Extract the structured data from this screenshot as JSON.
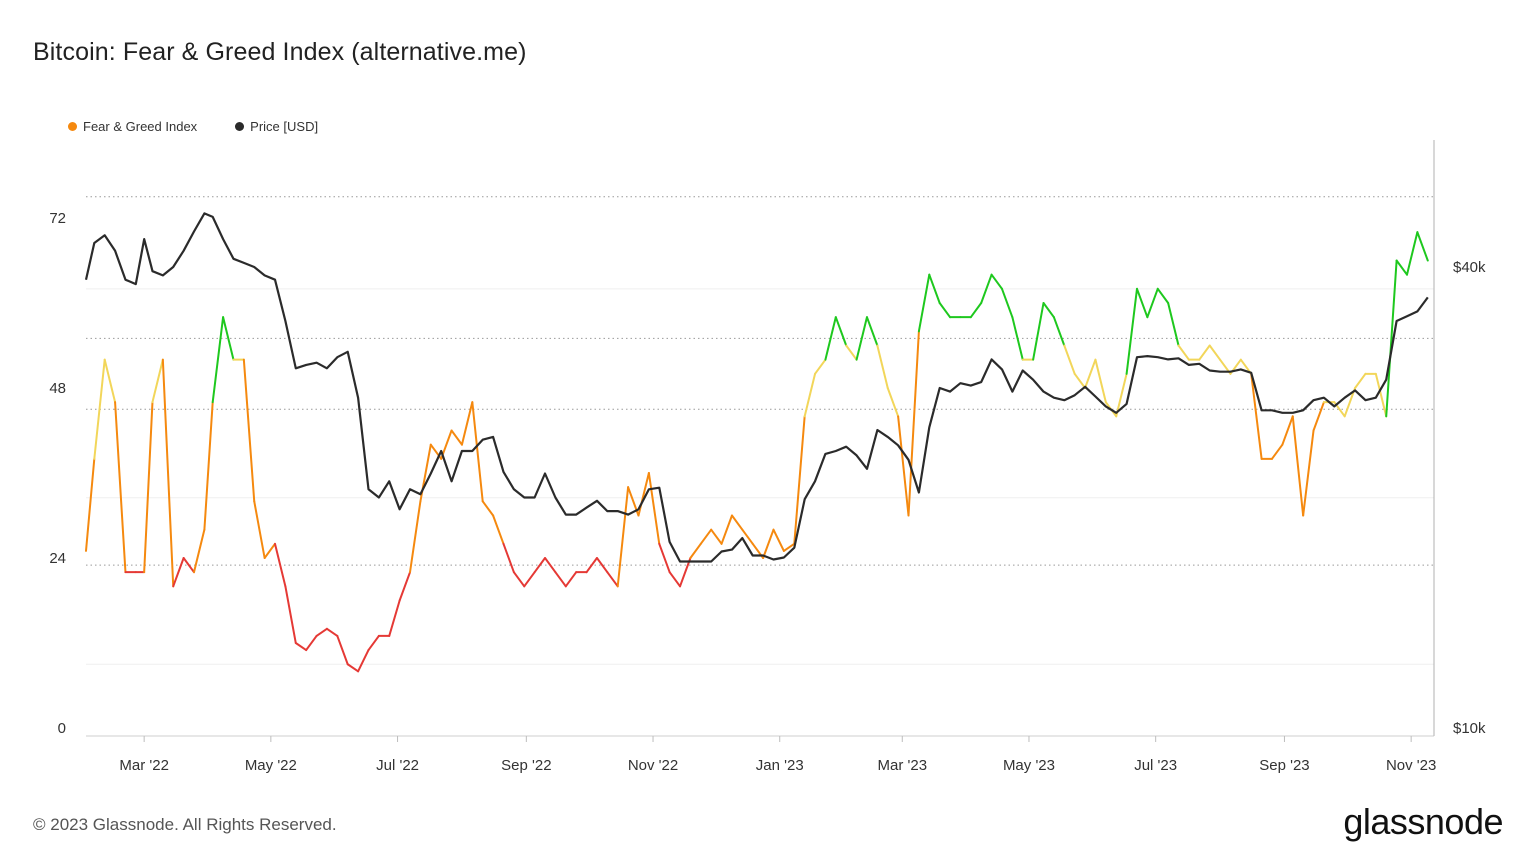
{
  "header": {
    "title": "Bitcoin: Fear & Greed Index (alternative.me)"
  },
  "footer": {
    "copyright": "© 2023 Glassnode. All Rights Reserved.",
    "brand": "glassnode"
  },
  "colors": {
    "extreme_fear": "#e53935",
    "fear": "#f5890f",
    "neutral": "#f2d65a",
    "greed": "#1ec81e",
    "price": "#2b2b2b",
    "grid": "#9a9a9a"
  },
  "chart_data": {
    "type": "line",
    "title": "Bitcoin: Fear & Greed Index (alternative.me)",
    "legend": {
      "placement": "top-left",
      "items": [
        {
          "name": "Fear & Greed Index",
          "color": "#f5890f"
        },
        {
          "name": "Price [USD]",
          "color": "#2b2b2b"
        }
      ]
    },
    "x_ticks": [
      "Mar '22",
      "May '22",
      "Jul '22",
      "Sep '22",
      "Nov '22",
      "Jan '23",
      "Mar '23",
      "May '23",
      "Jul '23",
      "Sep '23",
      "Nov '23"
    ],
    "y_left": {
      "label": "",
      "ticks": [
        "0",
        "24",
        "48",
        "72"
      ],
      "range": [
        0,
        75
      ]
    },
    "y_right": {
      "label": "",
      "ticks": [
        "$10k",
        "$40k"
      ],
      "scale": "log",
      "range": [
        10000,
        50000
      ]
    },
    "grid": {
      "horizontal": "dotted"
    },
    "series": [
      {
        "name": "Fear & Greed Index",
        "axis": "left",
        "color_bands": [
          {
            "max": 25,
            "color": "#e53935"
          },
          {
            "max": 45,
            "color": "#f5890f"
          },
          {
            "max": 55,
            "color": "#f2d65a"
          },
          {
            "max": 100,
            "color": "#1ec81e"
          }
        ],
        "x": [
          "2022-02-01",
          "2022-02-05",
          "2022-02-10",
          "2022-02-15",
          "2022-02-20",
          "2022-02-25",
          "2022-03-01",
          "2022-03-05",
          "2022-03-10",
          "2022-03-15",
          "2022-03-20",
          "2022-03-25",
          "2022-03-30",
          "2022-04-03",
          "2022-04-08",
          "2022-04-13",
          "2022-04-18",
          "2022-04-23",
          "2022-04-28",
          "2022-05-03",
          "2022-05-08",
          "2022-05-13",
          "2022-05-18",
          "2022-05-23",
          "2022-05-28",
          "2022-06-02",
          "2022-06-07",
          "2022-06-12",
          "2022-06-17",
          "2022-06-22",
          "2022-06-27",
          "2022-07-02",
          "2022-07-07",
          "2022-07-12",
          "2022-07-17",
          "2022-07-22",
          "2022-07-27",
          "2022-08-01",
          "2022-08-06",
          "2022-08-11",
          "2022-08-16",
          "2022-08-21",
          "2022-08-26",
          "2022-08-31",
          "2022-09-05",
          "2022-09-10",
          "2022-09-15",
          "2022-09-20",
          "2022-09-25",
          "2022-09-30",
          "2022-10-05",
          "2022-10-10",
          "2022-10-15",
          "2022-10-20",
          "2022-10-25",
          "2022-10-30",
          "2022-11-04",
          "2022-11-09",
          "2022-11-14",
          "2022-11-19",
          "2022-11-24",
          "2022-11-29",
          "2022-12-04",
          "2022-12-09",
          "2022-12-14",
          "2022-12-19",
          "2022-12-24",
          "2022-12-29",
          "2023-01-03",
          "2023-01-08",
          "2023-01-13",
          "2023-01-18",
          "2023-01-23",
          "2023-01-28",
          "2023-02-02",
          "2023-02-07",
          "2023-02-12",
          "2023-02-17",
          "2023-02-22",
          "2023-02-27",
          "2023-03-04",
          "2023-03-09",
          "2023-03-14",
          "2023-03-19",
          "2023-03-24",
          "2023-03-29",
          "2023-04-03",
          "2023-04-08",
          "2023-04-13",
          "2023-04-18",
          "2023-04-23",
          "2023-04-28",
          "2023-05-03",
          "2023-05-08",
          "2023-05-13",
          "2023-05-18",
          "2023-05-23",
          "2023-05-28",
          "2023-06-02",
          "2023-06-07",
          "2023-06-12",
          "2023-06-17",
          "2023-06-22",
          "2023-06-27",
          "2023-07-02",
          "2023-07-07",
          "2023-07-12",
          "2023-07-17",
          "2023-07-22",
          "2023-07-27",
          "2023-08-01",
          "2023-08-06",
          "2023-08-11",
          "2023-08-16",
          "2023-08-21",
          "2023-08-26",
          "2023-08-31",
          "2023-09-05",
          "2023-09-10",
          "2023-09-15",
          "2023-09-20",
          "2023-09-25",
          "2023-09-30",
          "2023-10-05",
          "2023-10-10",
          "2023-10-15",
          "2023-10-20",
          "2023-10-25",
          "2023-10-30",
          "2023-11-04",
          "2023-11-09"
        ],
        "values": [
          25,
          38,
          52,
          46,
          22,
          22,
          22,
          46,
          52,
          20,
          24,
          22,
          28,
          46,
          58,
          52,
          52,
          32,
          24,
          26,
          20,
          12,
          11,
          13,
          14,
          13,
          9,
          8,
          11,
          13,
          13,
          18,
          22,
          32,
          40,
          38,
          42,
          40,
          46,
          32,
          30,
          26,
          22,
          20,
          22,
          24,
          22,
          20,
          22,
          22,
          24,
          22,
          20,
          34,
          30,
          36,
          26,
          22,
          20,
          24,
          26,
          28,
          26,
          30,
          28,
          26,
          24,
          28,
          25,
          26,
          44,
          50,
          52,
          58,
          54,
          52,
          58,
          54,
          48,
          44,
          30,
          56,
          64,
          60,
          58,
          58,
          58,
          60,
          64,
          62,
          58,
          52,
          52,
          60,
          58,
          54,
          50,
          48,
          52,
          46,
          44,
          50,
          62,
          58,
          62,
          60,
          54,
          52,
          52,
          54,
          52,
          50,
          52,
          50,
          38,
          38,
          40,
          44,
          30,
          42,
          46,
          46,
          44,
          48,
          50,
          50,
          44,
          66,
          64,
          70,
          66
        ]
      },
      {
        "name": "Price [USD]",
        "axis": "right",
        "x": [
          "2022-02-01",
          "2022-02-05",
          "2022-02-10",
          "2022-02-15",
          "2022-02-20",
          "2022-02-25",
          "2022-03-01",
          "2022-03-05",
          "2022-03-10",
          "2022-03-15",
          "2022-03-20",
          "2022-03-25",
          "2022-03-30",
          "2022-04-03",
          "2022-04-08",
          "2022-04-13",
          "2022-04-18",
          "2022-04-23",
          "2022-04-28",
          "2022-05-03",
          "2022-05-08",
          "2022-05-13",
          "2022-05-18",
          "2022-05-23",
          "2022-05-28",
          "2022-06-02",
          "2022-06-07",
          "2022-06-12",
          "2022-06-17",
          "2022-06-22",
          "2022-06-27",
          "2022-07-02",
          "2022-07-07",
          "2022-07-12",
          "2022-07-17",
          "2022-07-22",
          "2022-07-27",
          "2022-08-01",
          "2022-08-06",
          "2022-08-11",
          "2022-08-16",
          "2022-08-21",
          "2022-08-26",
          "2022-08-31",
          "2022-09-05",
          "2022-09-10",
          "2022-09-15",
          "2022-09-20",
          "2022-09-25",
          "2022-09-30",
          "2022-10-05",
          "2022-10-10",
          "2022-10-15",
          "2022-10-20",
          "2022-10-25",
          "2022-10-30",
          "2022-11-04",
          "2022-11-09",
          "2022-11-14",
          "2022-11-19",
          "2022-11-24",
          "2022-11-29",
          "2022-12-04",
          "2022-12-09",
          "2022-12-14",
          "2022-12-19",
          "2022-12-24",
          "2022-12-29",
          "2023-01-03",
          "2023-01-08",
          "2023-01-13",
          "2023-01-18",
          "2023-01-23",
          "2023-01-28",
          "2023-02-02",
          "2023-02-07",
          "2023-02-12",
          "2023-02-17",
          "2023-02-22",
          "2023-02-27",
          "2023-03-04",
          "2023-03-09",
          "2023-03-14",
          "2023-03-19",
          "2023-03-24",
          "2023-03-29",
          "2023-04-03",
          "2023-04-08",
          "2023-04-13",
          "2023-04-18",
          "2023-04-23",
          "2023-04-28",
          "2023-05-03",
          "2023-05-08",
          "2023-05-13",
          "2023-05-18",
          "2023-05-23",
          "2023-05-28",
          "2023-06-02",
          "2023-06-07",
          "2023-06-12",
          "2023-06-17",
          "2023-06-22",
          "2023-06-27",
          "2023-07-02",
          "2023-07-07",
          "2023-07-12",
          "2023-07-17",
          "2023-07-22",
          "2023-07-27",
          "2023-08-01",
          "2023-08-06",
          "2023-08-11",
          "2023-08-16",
          "2023-08-21",
          "2023-08-26",
          "2023-08-31",
          "2023-09-05",
          "2023-09-10",
          "2023-09-15",
          "2023-09-20",
          "2023-09-25",
          "2023-09-30",
          "2023-10-05",
          "2023-10-10",
          "2023-10-15",
          "2023-10-20",
          "2023-10-25",
          "2023-10-30",
          "2023-11-04",
          "2023-11-09"
        ],
        "values": [
          38500,
          43000,
          44000,
          42000,
          38500,
          38000,
          43500,
          39500,
          39000,
          40000,
          42000,
          44500,
          47000,
          46500,
          43500,
          41000,
          40500,
          40000,
          39000,
          38500,
          34000,
          29500,
          29800,
          30000,
          29500,
          30500,
          31000,
          27000,
          20500,
          20000,
          21000,
          19300,
          20500,
          20200,
          21500,
          23000,
          21000,
          23000,
          23000,
          23800,
          24000,
          21600,
          20500,
          20000,
          20000,
          21500,
          20000,
          19000,
          19000,
          19400,
          19800,
          19200,
          19200,
          19000,
          19300,
          20500,
          20600,
          17500,
          16500,
          16500,
          16500,
          16500,
          17000,
          17100,
          17700,
          16800,
          16800,
          16600,
          16700,
          17200,
          19900,
          21000,
          22800,
          23000,
          23300,
          22700,
          21800,
          24500,
          24000,
          23400,
          22400,
          20300,
          24700,
          27800,
          27500,
          28200,
          28000,
          28300,
          30300,
          29400,
          27500,
          29300,
          28500,
          27500,
          27000,
          26800,
          27200,
          27900,
          27100,
          26300,
          25800,
          26500,
          30500,
          30600,
          30500,
          30300,
          30400,
          29800,
          29900,
          29300,
          29200,
          29200,
          29400,
          29100,
          26000,
          26000,
          25800,
          25800,
          26000,
          26800,
          27000,
          26300,
          27000,
          27600,
          26800,
          27000,
          28500,
          34000,
          34500,
          35000,
          36500
        ]
      }
    ]
  }
}
